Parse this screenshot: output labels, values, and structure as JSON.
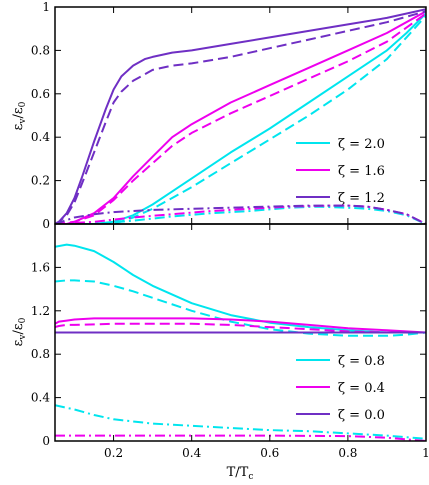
{
  "chart_data": [
    {
      "type": "line",
      "panel": "top",
      "ylabel": "ε_v/ε_0",
      "xlim": [
        0.05,
        1.0
      ],
      "ylim": [
        0,
        1
      ],
      "xticks": [
        0.2,
        0.4,
        0.6,
        0.8,
        1.0
      ],
      "yticks": [
        0,
        0.2,
        0.4,
        0.6,
        0.8,
        1.0
      ],
      "ytick_labels": [
        "0",
        "0.2",
        "0.4",
        "0.6",
        "0.8",
        "1"
      ],
      "legend_placement": "lower-right",
      "series": [
        {
          "name": "ζ = 2.0",
          "style": "solid",
          "color": "#00e5ee",
          "x": [
            0.05,
            0.15,
            0.2,
            0.25,
            0.3,
            0.35,
            0.4,
            0.5,
            0.6,
            0.7,
            0.8,
            0.9,
            0.95,
            1.0
          ],
          "y": [
            0.0,
            0.0,
            0.01,
            0.04,
            0.09,
            0.15,
            0.21,
            0.33,
            0.44,
            0.56,
            0.68,
            0.8,
            0.88,
            0.97
          ]
        },
        {
          "style": "dashed",
          "color": "#00e5ee",
          "x": [
            0.05,
            0.2,
            0.25,
            0.3,
            0.35,
            0.4,
            0.5,
            0.6,
            0.7,
            0.8,
            0.9,
            0.95,
            1.0
          ],
          "y": [
            0.0,
            0.0,
            0.03,
            0.07,
            0.12,
            0.17,
            0.28,
            0.39,
            0.5,
            0.62,
            0.76,
            0.86,
            0.96
          ]
        },
        {
          "style": "dashdot",
          "color": "#00e5ee",
          "x": [
            0.05,
            0.15,
            0.25,
            0.35,
            0.45,
            0.55,
            0.65,
            0.72,
            0.8,
            0.85,
            0.9,
            0.95,
            1.0
          ],
          "y": [
            0.0,
            0.0,
            0.015,
            0.035,
            0.05,
            0.06,
            0.075,
            0.08,
            0.075,
            0.07,
            0.06,
            0.04,
            0.0
          ]
        },
        {
          "name": "ζ = 1.6",
          "style": "solid",
          "color": "#ee00ee",
          "x": [
            0.05,
            0.08,
            0.1,
            0.15,
            0.2,
            0.25,
            0.3,
            0.35,
            0.4,
            0.5,
            0.6,
            0.7,
            0.8,
            0.9,
            1.0
          ],
          "y": [
            0.0,
            0.0,
            0.01,
            0.05,
            0.12,
            0.22,
            0.31,
            0.4,
            0.46,
            0.56,
            0.64,
            0.72,
            0.8,
            0.88,
            0.98
          ]
        },
        {
          "style": "dashed",
          "color": "#ee00ee",
          "x": [
            0.05,
            0.1,
            0.15,
            0.2,
            0.25,
            0.3,
            0.35,
            0.4,
            0.5,
            0.6,
            0.7,
            0.8,
            0.9,
            1.0
          ],
          "y": [
            0.0,
            0.01,
            0.04,
            0.11,
            0.2,
            0.28,
            0.36,
            0.42,
            0.51,
            0.59,
            0.67,
            0.75,
            0.84,
            0.97
          ]
        },
        {
          "style": "dashdot",
          "color": "#ee00ee",
          "x": [
            0.05,
            0.1,
            0.15,
            0.25,
            0.35,
            0.45,
            0.55,
            0.65,
            0.75,
            0.8,
            0.85,
            0.9,
            0.95,
            1.0
          ],
          "y": [
            0.0,
            0.005,
            0.01,
            0.03,
            0.045,
            0.06,
            0.07,
            0.08,
            0.085,
            0.085,
            0.08,
            0.065,
            0.045,
            0.0
          ]
        },
        {
          "name": "ζ = 1.2",
          "style": "solid",
          "color": "#6f2fc4",
          "x": [
            0.05,
            0.06,
            0.08,
            0.1,
            0.12,
            0.15,
            0.18,
            0.2,
            0.22,
            0.25,
            0.28,
            0.3,
            0.35,
            0.4,
            0.5,
            0.6,
            0.7,
            0.8,
            0.9,
            1.0
          ],
          "y": [
            0.0,
            0.01,
            0.05,
            0.12,
            0.22,
            0.38,
            0.53,
            0.62,
            0.68,
            0.73,
            0.76,
            0.77,
            0.79,
            0.8,
            0.83,
            0.86,
            0.89,
            0.92,
            0.95,
            0.99
          ]
        },
        {
          "style": "dashed",
          "color": "#6f2fc4",
          "x": [
            0.05,
            0.06,
            0.08,
            0.1,
            0.12,
            0.15,
            0.18,
            0.2,
            0.22,
            0.25,
            0.28,
            0.3,
            0.35,
            0.4,
            0.5,
            0.6,
            0.7,
            0.8,
            0.9,
            1.0
          ],
          "y": [
            0.0,
            0.01,
            0.04,
            0.1,
            0.19,
            0.33,
            0.47,
            0.56,
            0.61,
            0.66,
            0.69,
            0.71,
            0.73,
            0.74,
            0.77,
            0.81,
            0.85,
            0.89,
            0.93,
            0.98
          ]
        },
        {
          "style": "dashdot",
          "color": "#6f2fc4",
          "x": [
            0.05,
            0.1,
            0.15,
            0.2,
            0.3,
            0.4,
            0.5,
            0.6,
            0.7,
            0.8,
            0.85,
            0.9,
            0.95,
            1.0
          ],
          "y": [
            0.0,
            0.03,
            0.045,
            0.055,
            0.065,
            0.07,
            0.075,
            0.08,
            0.085,
            0.085,
            0.08,
            0.065,
            0.045,
            0.0
          ]
        }
      ]
    },
    {
      "type": "line",
      "panel": "bottom",
      "xlabel": "T/T_c",
      "ylabel": "ε_v/ε_0",
      "xlim": [
        0.05,
        1.0
      ],
      "ylim": [
        0,
        2
      ],
      "xticks": [
        0.2,
        0.4,
        0.6,
        0.8,
        1.0
      ],
      "xtick_labels": [
        "0.2",
        "0.4",
        "0.6",
        "0.8",
        "1"
      ],
      "yticks": [
        0,
        0.4,
        0.8,
        1.2,
        1.6
      ],
      "ytick_labels": [
        "0",
        "0.4",
        "0.8",
        "1.2",
        "1.6"
      ],
      "legend_placement": "lower-right",
      "series": [
        {
          "name": "ζ = 0.8",
          "style": "solid",
          "color": "#00e5ee",
          "x": [
            0.05,
            0.08,
            0.1,
            0.15,
            0.2,
            0.25,
            0.3,
            0.4,
            0.5,
            0.6,
            0.7,
            0.8,
            0.9,
            1.0
          ],
          "y": [
            1.79,
            1.81,
            1.8,
            1.75,
            1.65,
            1.53,
            1.43,
            1.27,
            1.16,
            1.09,
            1.05,
            1.02,
            1.0,
            1.0
          ]
        },
        {
          "style": "dashed",
          "color": "#00e5ee",
          "x": [
            0.05,
            0.08,
            0.1,
            0.15,
            0.2,
            0.25,
            0.3,
            0.4,
            0.5,
            0.6,
            0.7,
            0.8,
            0.9,
            0.95,
            1.0
          ],
          "y": [
            1.47,
            1.48,
            1.48,
            1.47,
            1.43,
            1.38,
            1.32,
            1.2,
            1.1,
            1.03,
            0.99,
            0.97,
            0.97,
            0.98,
            1.0
          ]
        },
        {
          "style": "dashdot",
          "color": "#00e5ee",
          "x": [
            0.05,
            0.1,
            0.15,
            0.2,
            0.3,
            0.4,
            0.5,
            0.6,
            0.7,
            0.8,
            0.9,
            1.0
          ],
          "y": [
            0.33,
            0.29,
            0.24,
            0.2,
            0.16,
            0.14,
            0.12,
            0.1,
            0.09,
            0.07,
            0.05,
            0.02
          ]
        },
        {
          "name": "ζ = 0.4",
          "style": "solid",
          "color": "#ee00ee",
          "x": [
            0.05,
            0.06,
            0.08,
            0.1,
            0.15,
            0.2,
            0.3,
            0.4,
            0.5,
            0.6,
            0.7,
            0.8,
            0.9,
            1.0
          ],
          "y": [
            1.08,
            1.1,
            1.11,
            1.12,
            1.13,
            1.13,
            1.13,
            1.13,
            1.12,
            1.1,
            1.07,
            1.04,
            1.02,
            1.0
          ]
        },
        {
          "style": "dashed",
          "color": "#ee00ee",
          "x": [
            0.05,
            0.06,
            0.08,
            0.1,
            0.2,
            0.3,
            0.4,
            0.5,
            0.6,
            0.7,
            0.8,
            0.9,
            1.0
          ],
          "y": [
            1.05,
            1.06,
            1.07,
            1.07,
            1.08,
            1.08,
            1.08,
            1.07,
            1.05,
            1.03,
            1.01,
            1.0,
            1.0
          ]
        },
        {
          "style": "dashdot",
          "color": "#ee00ee",
          "x": [
            0.05,
            0.2,
            0.4,
            0.6,
            0.8,
            0.9,
            1.0
          ],
          "y": [
            0.05,
            0.05,
            0.05,
            0.05,
            0.045,
            0.03,
            0.0
          ]
        },
        {
          "name": "ζ = 0.0",
          "style": "solid",
          "color": "#6f2fc4",
          "x": [
            0.05,
            1.0
          ],
          "y": [
            1.0,
            1.0
          ]
        }
      ]
    }
  ]
}
